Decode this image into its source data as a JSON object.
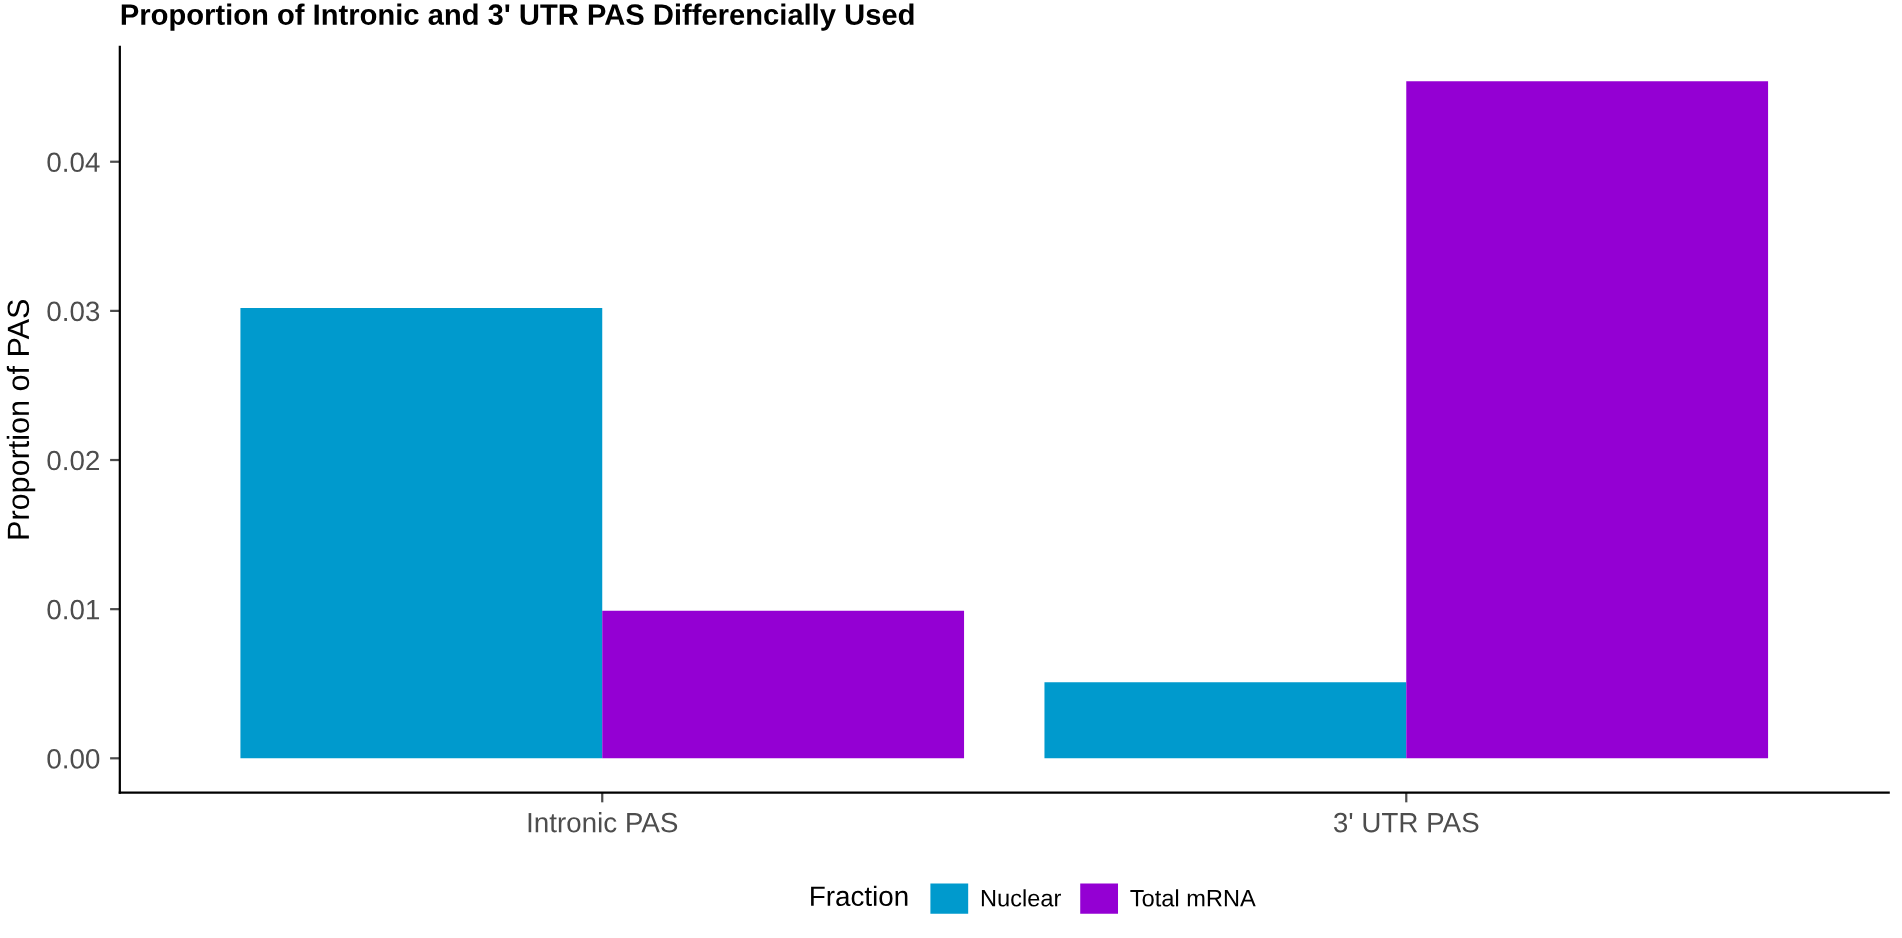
{
  "chart_data": {
    "type": "bar",
    "title": "Proportion of Intronic and 3' UTR PAS Differencially Used",
    "ylabel": "Proportion of PAS",
    "legend_title": "Fraction",
    "categories": [
      "Intronic PAS",
      "3' UTR PAS"
    ],
    "series": [
      {
        "name": "Nuclear",
        "color": "#009acd",
        "values": [
          0.0302,
          0.0051
        ]
      },
      {
        "name": "Total mRNA",
        "color": "#9400d3",
        "values": [
          0.0099,
          0.0454
        ]
      }
    ],
    "ylim": [
      -0.0023,
      0.0477
    ],
    "yticks": [
      {
        "value": 0,
        "label": "0.00"
      },
      {
        "value": 0.01,
        "label": "0.01"
      },
      {
        "value": 0.02,
        "label": "0.02"
      },
      {
        "value": 0.03,
        "label": "0.03"
      },
      {
        "value": 0.04,
        "label": "0.04"
      }
    ],
    "grid": false,
    "legend": "bottom"
  }
}
